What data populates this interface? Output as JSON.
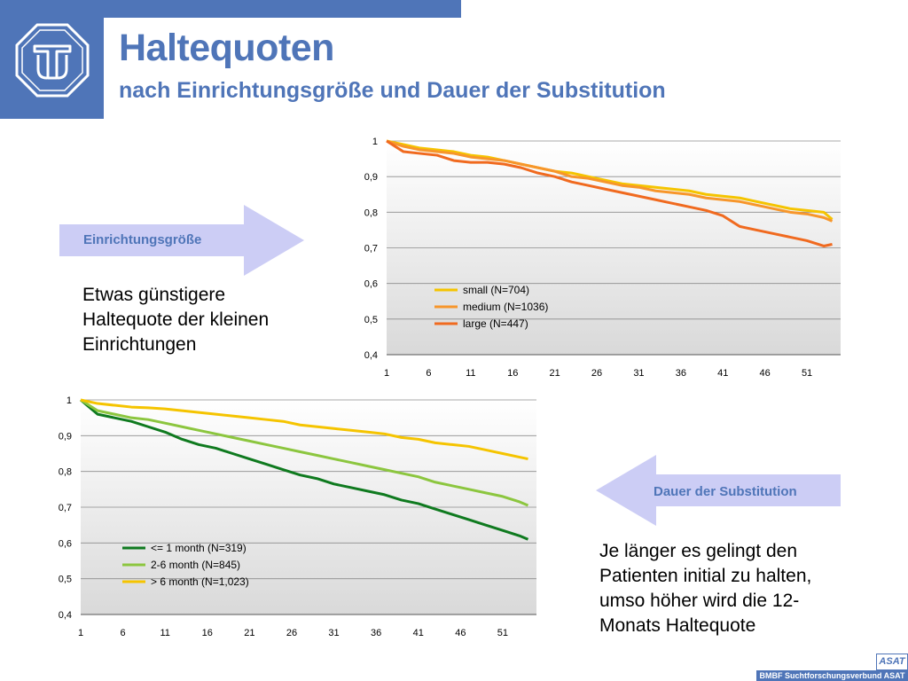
{
  "header": {
    "title": "Haltequoten",
    "subtitle": "nach Einrichtungsgröße und Dauer der Substitution"
  },
  "arrows": {
    "size_label": "Einrichtungsgröße",
    "duration_label": "Dauer der Substitution"
  },
  "notes": {
    "size_note": [
      "Etwas günstigere",
      "Haltequote der kleinen",
      "Einrichtungen"
    ],
    "duration_note": [
      "Je länger es gelingt den",
      "Patienten initial zu halten,",
      "umso höher wird die 12-",
      "Monats Haltequote"
    ]
  },
  "footer": {
    "text": "BMBF Suchtforschungsverbund ASAT",
    "badge": "ASAT"
  },
  "colors": {
    "brand_blue": "#4f75b8",
    "arrow_fill": "#cccdf5",
    "plot_bg_top": "#ffffff",
    "plot_bg_bottom": "#d9d9d9"
  },
  "chart_data": [
    {
      "type": "line",
      "title": "",
      "xlabel": "",
      "ylabel": "",
      "x_ticks": [
        "1",
        "6",
        "11",
        "16",
        "21",
        "26",
        "31",
        "36",
        "41",
        "46",
        "51"
      ],
      "y_ticks": [
        "0,4",
        "0,5",
        "0,6",
        "0,7",
        "0,8",
        "0,9",
        "1"
      ],
      "xlim": [
        1,
        55
      ],
      "ylim": [
        0.4,
        1
      ],
      "grid": true,
      "legend_position": "center-left",
      "x": [
        1,
        3,
        5,
        7,
        9,
        11,
        13,
        15,
        17,
        19,
        21,
        23,
        25,
        27,
        29,
        31,
        33,
        35,
        37,
        39,
        41,
        43,
        45,
        47,
        49,
        51,
        53,
        54
      ],
      "series": [
        {
          "name": "small (N=704)",
          "color": "#f5c400",
          "values": [
            1,
            0.99,
            0.98,
            0.975,
            0.97,
            0.96,
            0.955,
            0.945,
            0.935,
            0.925,
            0.915,
            0.91,
            0.9,
            0.89,
            0.88,
            0.875,
            0.87,
            0.865,
            0.86,
            0.85,
            0.845,
            0.84,
            0.83,
            0.82,
            0.81,
            0.805,
            0.8,
            0.78
          ]
        },
        {
          "name": "medium (N=1036)",
          "color": "#f7962b",
          "values": [
            1,
            0.985,
            0.975,
            0.97,
            0.965,
            0.955,
            0.95,
            0.945,
            0.935,
            0.925,
            0.915,
            0.9,
            0.895,
            0.885,
            0.875,
            0.87,
            0.86,
            0.855,
            0.85,
            0.84,
            0.835,
            0.83,
            0.82,
            0.81,
            0.8,
            0.795,
            0.785,
            0.775
          ]
        },
        {
          "name": "large (N=447)",
          "color": "#f06a1f",
          "values": [
            1,
            0.97,
            0.965,
            0.96,
            0.945,
            0.94,
            0.94,
            0.935,
            0.925,
            0.91,
            0.9,
            0.885,
            0.875,
            0.865,
            0.855,
            0.845,
            0.835,
            0.825,
            0.815,
            0.805,
            0.79,
            0.76,
            0.75,
            0.74,
            0.73,
            0.72,
            0.705,
            0.71
          ]
        }
      ]
    },
    {
      "type": "line",
      "title": "",
      "xlabel": "",
      "ylabel": "",
      "x_ticks": [
        "1",
        "6",
        "11",
        "16",
        "21",
        "26",
        "31",
        "36",
        "41",
        "46",
        "51"
      ],
      "y_ticks": [
        "0,4",
        "0,5",
        "0,6",
        "0,7",
        "0,8",
        "0,9",
        "1"
      ],
      "xlim": [
        1,
        55
      ],
      "ylim": [
        0.4,
        1
      ],
      "grid": true,
      "legend_position": "bottom-left",
      "x": [
        1,
        3,
        5,
        7,
        9,
        11,
        13,
        15,
        17,
        19,
        21,
        23,
        25,
        27,
        29,
        31,
        33,
        35,
        37,
        39,
        41,
        43,
        45,
        47,
        49,
        51,
        53,
        54
      ],
      "series": [
        {
          "name": "<= 1 month (N=319)",
          "color": "#0f7a1f",
          "values": [
            1,
            0.96,
            0.95,
            0.94,
            0.925,
            0.91,
            0.89,
            0.875,
            0.865,
            0.85,
            0.835,
            0.82,
            0.805,
            0.79,
            0.78,
            0.765,
            0.755,
            0.745,
            0.735,
            0.72,
            0.71,
            0.695,
            0.68,
            0.665,
            0.65,
            0.635,
            0.62,
            0.61
          ]
        },
        {
          "name": "2-6 month (N=845)",
          "color": "#8cc63f",
          "values": [
            1,
            0.97,
            0.96,
            0.95,
            0.945,
            0.935,
            0.925,
            0.915,
            0.905,
            0.895,
            0.885,
            0.875,
            0.865,
            0.855,
            0.845,
            0.835,
            0.825,
            0.815,
            0.805,
            0.795,
            0.785,
            0.77,
            0.76,
            0.75,
            0.74,
            0.73,
            0.715,
            0.705
          ]
        },
        {
          "name": "> 6 month (N=1,023)",
          "color": "#f5c400",
          "values": [
            1,
            0.99,
            0.985,
            0.98,
            0.978,
            0.975,
            0.97,
            0.965,
            0.96,
            0.955,
            0.95,
            0.945,
            0.94,
            0.93,
            0.925,
            0.92,
            0.915,
            0.91,
            0.905,
            0.895,
            0.89,
            0.88,
            0.875,
            0.87,
            0.86,
            0.85,
            0.84,
            0.835
          ]
        }
      ]
    }
  ]
}
